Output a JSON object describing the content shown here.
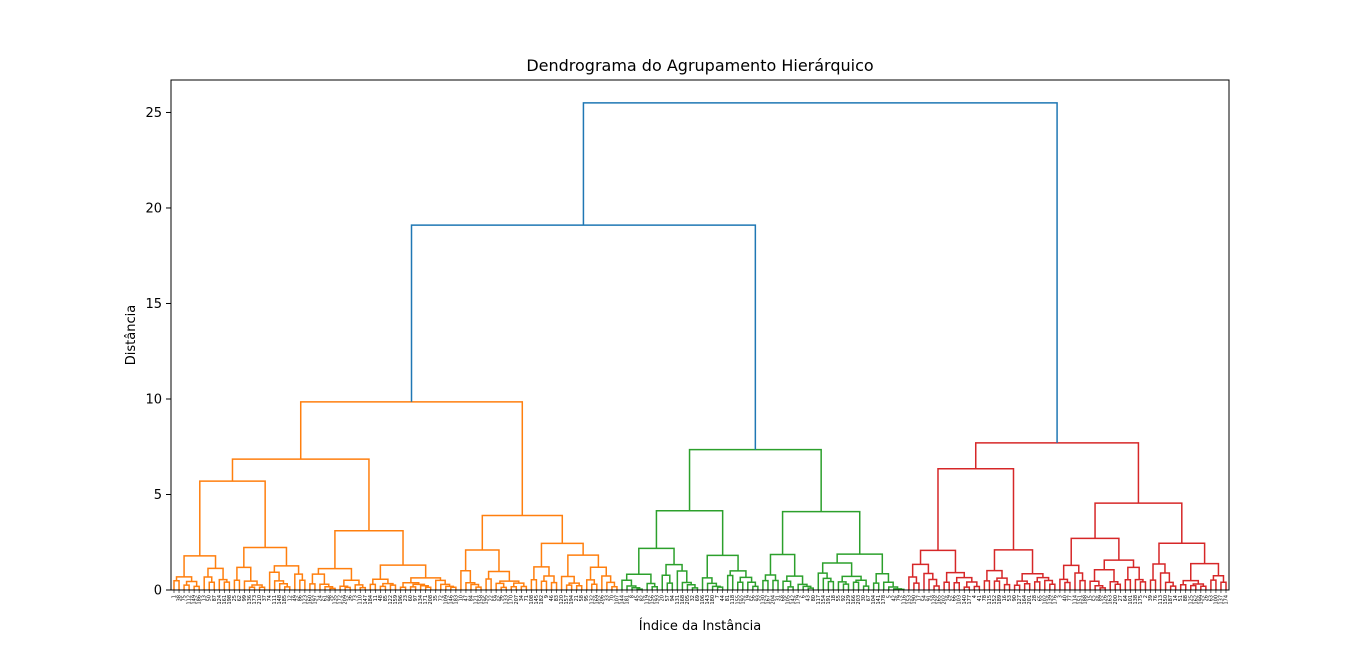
{
  "chart_data": {
    "type": "dendrogram",
    "title": "Dendrograma do Agrupamento Hierárquico",
    "xlabel": "Índice da Instância",
    "ylabel": "Distância",
    "ylim": [
      0,
      26.7
    ],
    "yticks": [
      0,
      5,
      10,
      15,
      20,
      25
    ],
    "grid": false,
    "colors": {
      "link": "#1f77b4",
      "cluster_orange": "#ff7f0e",
      "cluster_green": "#2ca02c",
      "cluster_red": "#d62728"
    },
    "leaf_count": 210,
    "merges": [
      {
        "cluster": "root",
        "height": 25.5,
        "color": "link"
      },
      {
        "cluster": "orange+green",
        "height": 19.1,
        "color": "link"
      },
      {
        "cluster": "orange",
        "height": 9.85,
        "color": "cluster_orange"
      },
      {
        "cluster": "orange-left",
        "height": 6.85,
        "color": "cluster_orange"
      },
      {
        "cluster": "orange-left-a",
        "height": 5.7,
        "color": "cluster_orange"
      },
      {
        "cluster": "orange-left-b",
        "height": 3.1,
        "color": "cluster_orange"
      },
      {
        "cluster": "orange-right",
        "height": 3.9,
        "color": "cluster_orange"
      },
      {
        "cluster": "green",
        "height": 7.35,
        "color": "cluster_green"
      },
      {
        "cluster": "green-left",
        "height": 4.15,
        "color": "cluster_green"
      },
      {
        "cluster": "green-right",
        "height": 4.1,
        "color": "cluster_green"
      },
      {
        "cluster": "red",
        "height": 7.7,
        "color": "cluster_red"
      },
      {
        "cluster": "red-left",
        "height": 6.35,
        "color": "cluster_red"
      },
      {
        "cluster": "red-right",
        "height": 4.55,
        "color": "cluster_red"
      }
    ]
  }
}
